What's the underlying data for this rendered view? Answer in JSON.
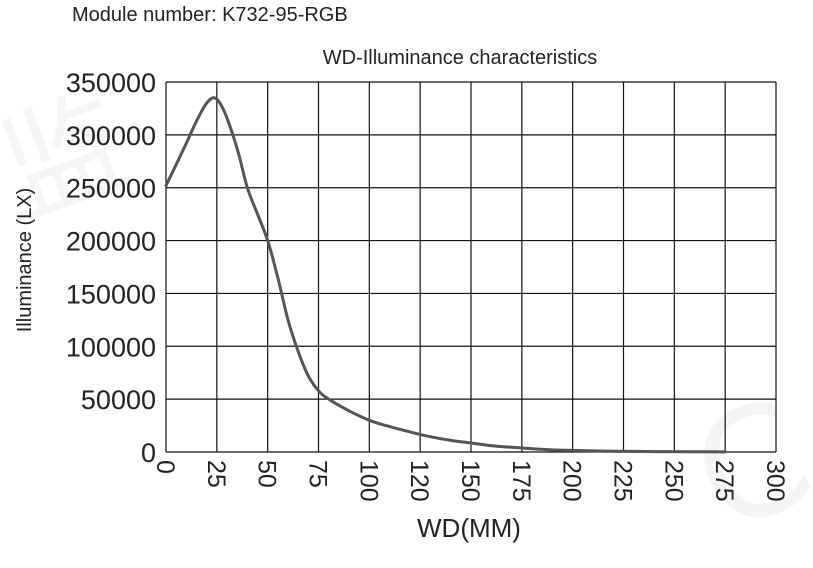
{
  "module_label": "Module number: K732-95-RGB",
  "chart_data": {
    "type": "line",
    "title": "WD-Illuminance characteristics",
    "xlabel": "WD(MM)",
    "ylabel": "Illuminance (LX)",
    "xlim": [
      0,
      300
    ],
    "ylim": [
      0,
      350000
    ],
    "x_ticks": [
      "0",
      "25",
      "50",
      "75",
      "100",
      "120",
      "150",
      "175",
      "200",
      "225",
      "250",
      "275",
      "300"
    ],
    "y_ticks": [
      "0",
      "50000",
      "100000",
      "150000",
      "200000",
      "250000",
      "300000",
      "350000"
    ],
    "grid": true,
    "line_color": "#555555",
    "series": [
      {
        "x": [
          0,
          5,
          10,
          15,
          20,
          24,
          28,
          32,
          36,
          40,
          45,
          50,
          55,
          60,
          65,
          70,
          75,
          80,
          90,
          100,
          110,
          120,
          130,
          140,
          150,
          160,
          175,
          190,
          200,
          220,
          240,
          260,
          275
        ],
        "y": [
          252000,
          272000,
          292000,
          313000,
          330000,
          335000,
          325000,
          305000,
          280000,
          250000,
          225000,
          200000,
          165000,
          125000,
          95000,
          72000,
          58000,
          50000,
          39000,
          30000,
          24000,
          19000,
          14500,
          11000,
          8500,
          6000,
          3800,
          2000,
          1500,
          800,
          400,
          200,
          100
        ]
      }
    ]
  }
}
